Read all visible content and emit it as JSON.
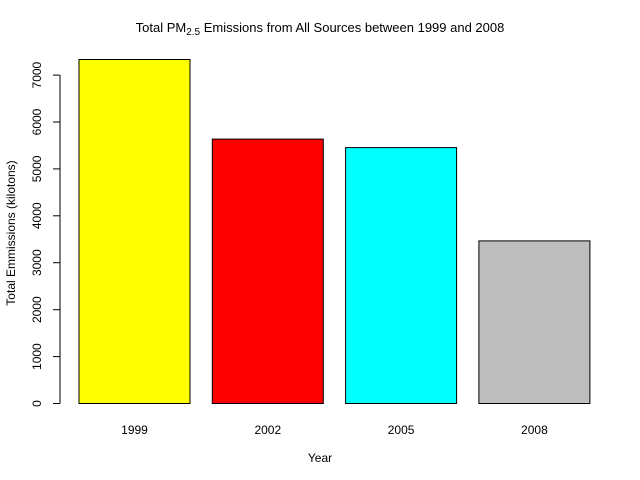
{
  "chart_data": {
    "type": "bar",
    "title_main": "Total PM",
    "title_sub": "2.5",
    "title_rest": " Emissions from All Sources between 1999 and 2008",
    "xlabel": "Year",
    "ylabel": "Total Emmissions (kilotons)",
    "categories": [
      "1999",
      "2002",
      "2005",
      "2008"
    ],
    "values": [
      7332,
      5636,
      5454,
      3465
    ],
    "colors": [
      "#ffff00",
      "#ff0000",
      "#00ffff",
      "#bebebe"
    ],
    "ylim": [
      0,
      7332
    ],
    "yticks": [
      0,
      1000,
      2000,
      3000,
      4000,
      5000,
      6000,
      7000
    ],
    "grid": false,
    "legend": "none"
  }
}
